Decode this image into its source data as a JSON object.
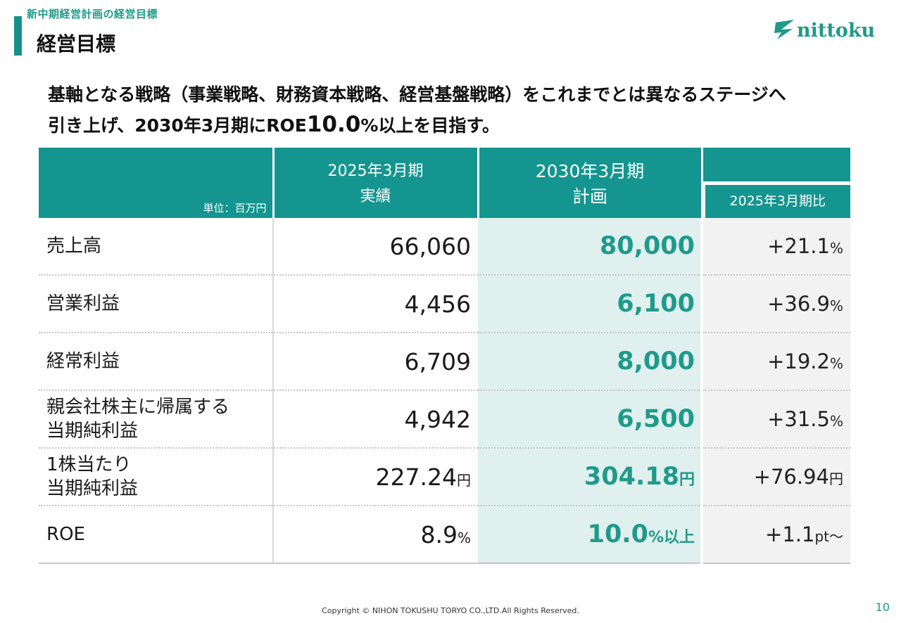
{
  "header": {
    "breadcrumb": "新中期経営計画の経営目標",
    "title": "経営目標",
    "logo_text": "nittoku"
  },
  "lead": {
    "line1": "基軸となる戦略（事業戦略、財務資本戦略、経営基盤戦略）をこれまでとは異なるステージへ",
    "line2_pre": "引き上げ、2030年3月期にROE",
    "line2_value": "10.0",
    "line2_post": "%以上を目指す。"
  },
  "table": {
    "unit_label": "単位：百万円",
    "col_actual": [
      "2025年3月期",
      "実績"
    ],
    "col_plan": [
      "2030年3月期",
      "計画"
    ],
    "col_compare": "2025年3月期比",
    "rows": [
      {
        "label1": "売上高",
        "label2": "",
        "actual": "66,060",
        "actual_unit": "",
        "plan": "80,000",
        "plan_unit": "",
        "compare": "+21.1",
        "compare_unit": "%"
      },
      {
        "label1": "営業利益",
        "label2": "",
        "actual": "4,456",
        "actual_unit": "",
        "plan": "6,100",
        "plan_unit": "",
        "compare": "+36.9",
        "compare_unit": "%"
      },
      {
        "label1": "経常利益",
        "label2": "",
        "actual": "6,709",
        "actual_unit": "",
        "plan": "8,000",
        "plan_unit": "",
        "compare": "+19.2",
        "compare_unit": "%"
      },
      {
        "label1": "親会社株主に帰属する",
        "label2": "当期純利益",
        "actual": "4,942",
        "actual_unit": "",
        "plan": "6,500",
        "plan_unit": "",
        "compare": "+31.5",
        "compare_unit": "%"
      },
      {
        "label1": "1株当たり",
        "label2": "当期純利益",
        "actual": "227.24",
        "actual_unit": "円",
        "plan": "304.18",
        "plan_unit": "円",
        "compare": "+76.94",
        "compare_unit": "円"
      },
      {
        "label1": "ROE",
        "label2": "",
        "actual": "8.9",
        "actual_unit": "%",
        "plan": "10.0",
        "plan_unit": "%以上",
        "compare": "+1.1",
        "compare_unit": "pt～"
      }
    ]
  },
  "footer": {
    "copyright": "Copyright © NIHON TOKUSHU TORYO CO.,LTD.All Rights Reserved.",
    "page_number": "10"
  },
  "colors": {
    "accent": "#14958f",
    "plan_bg": "#dff0ee",
    "compare_bg": "#f2f2f2"
  }
}
